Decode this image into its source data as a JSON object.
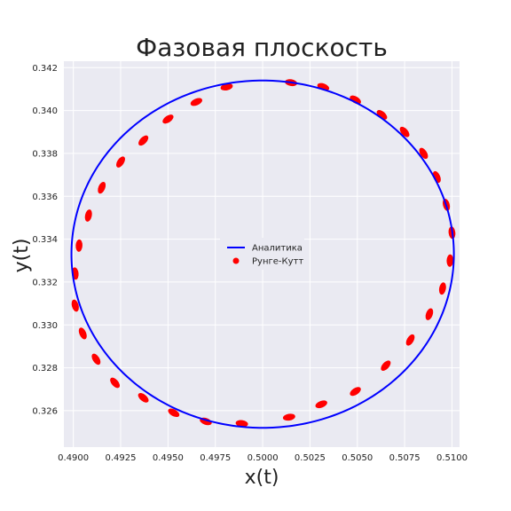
{
  "chart_data": {
    "type": "line",
    "title": "Фазовая плоскость",
    "xlabel": "x(t)",
    "ylabel": "y(t)",
    "xlim": [
      0.4895,
      0.5104
    ],
    "ylim": [
      0.3243,
      0.3423
    ],
    "xticks": [
      0.49,
      0.4925,
      0.495,
      0.4975,
      0.5,
      0.5025,
      0.505,
      0.5075,
      0.51
    ],
    "xtick_labels": [
      "0.4900",
      "0.4925",
      "0.4950",
      "0.4975",
      "0.5000",
      "0.5025",
      "0.5050",
      "0.5075",
      "0.5100"
    ],
    "yticks": [
      0.326,
      0.328,
      0.33,
      0.332,
      0.334,
      0.336,
      0.338,
      0.34,
      0.342
    ],
    "ytick_labels": [
      "0.326",
      "0.328",
      "0.330",
      "0.332",
      "0.334",
      "0.336",
      "0.338",
      "0.340",
      "0.342"
    ],
    "grid": true,
    "legend_position": "center",
    "series": [
      {
        "name": "Аналитика",
        "kind": "line",
        "color": "#0000ff",
        "shape": "ellipse",
        "center": [
          0.5,
          0.3333
        ],
        "radius": [
          0.0101,
          0.0081
        ]
      },
      {
        "name": "Рунге-Кутт",
        "kind": "scatter",
        "color": "#ff0000",
        "x": [
          0.5015,
          0.5032,
          0.5049,
          0.5063,
          0.5075,
          0.5085,
          0.5092,
          0.5097,
          0.51,
          0.5099,
          0.5095,
          0.5088,
          0.5078,
          0.5065,
          0.5049,
          0.5031,
          0.5014,
          0.4989,
          0.497,
          0.4953,
          0.4937,
          0.4922,
          0.4912,
          0.4905,
          0.4901,
          0.4901,
          0.4903,
          0.4908,
          0.4915,
          0.4925,
          0.4937,
          0.495,
          0.4965,
          0.4981
        ],
        "y": [
          0.3413,
          0.3411,
          0.3405,
          0.3398,
          0.339,
          0.338,
          0.3369,
          0.3356,
          0.3343,
          0.333,
          0.3317,
          0.3305,
          0.3293,
          0.3281,
          0.3269,
          0.3263,
          0.3257,
          0.3254,
          0.3255,
          0.3259,
          0.3266,
          0.3273,
          0.3284,
          0.3296,
          0.3309,
          0.3324,
          0.3337,
          0.3351,
          0.3364,
          0.3376,
          0.3386,
          0.3396,
          0.3404,
          0.3411
        ]
      }
    ]
  }
}
